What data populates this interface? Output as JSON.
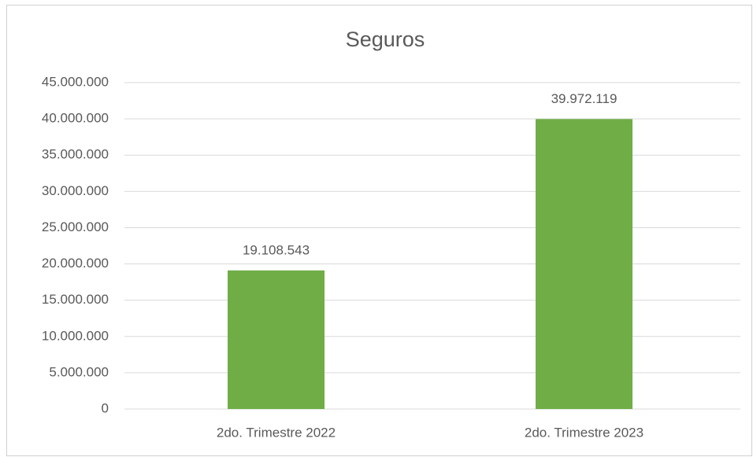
{
  "chart_data": {
    "type": "bar",
    "title": "Seguros",
    "categories": [
      "2do. Trimestre 2022",
      "2do. Trimestre 2023"
    ],
    "values": [
      19108543,
      39972119
    ],
    "value_labels": [
      "19.108.543",
      "39.972.119"
    ],
    "color": "#70ad47",
    "ylim": [
      0,
      45000000
    ],
    "yticks": [
      0,
      {
        "value": 5000000,
        "label": "5.000.000"
      },
      {
        "value": 10000000,
        "label": "10.000.000"
      },
      {
        "value": 15000000,
        "label": "15.000.000"
      },
      {
        "value": 20000000,
        "label": "20.000.000"
      },
      {
        "value": 25000000,
        "label": "25.000.000"
      },
      {
        "value": 30000000,
        "label": "30.000.000"
      },
      {
        "value": 35000000,
        "label": "35.000.000"
      },
      {
        "value": 40000000,
        "label": "40.000.000"
      },
      {
        "value": 45000000,
        "label": "45.000.000"
      }
    ],
    "grid": true
  }
}
